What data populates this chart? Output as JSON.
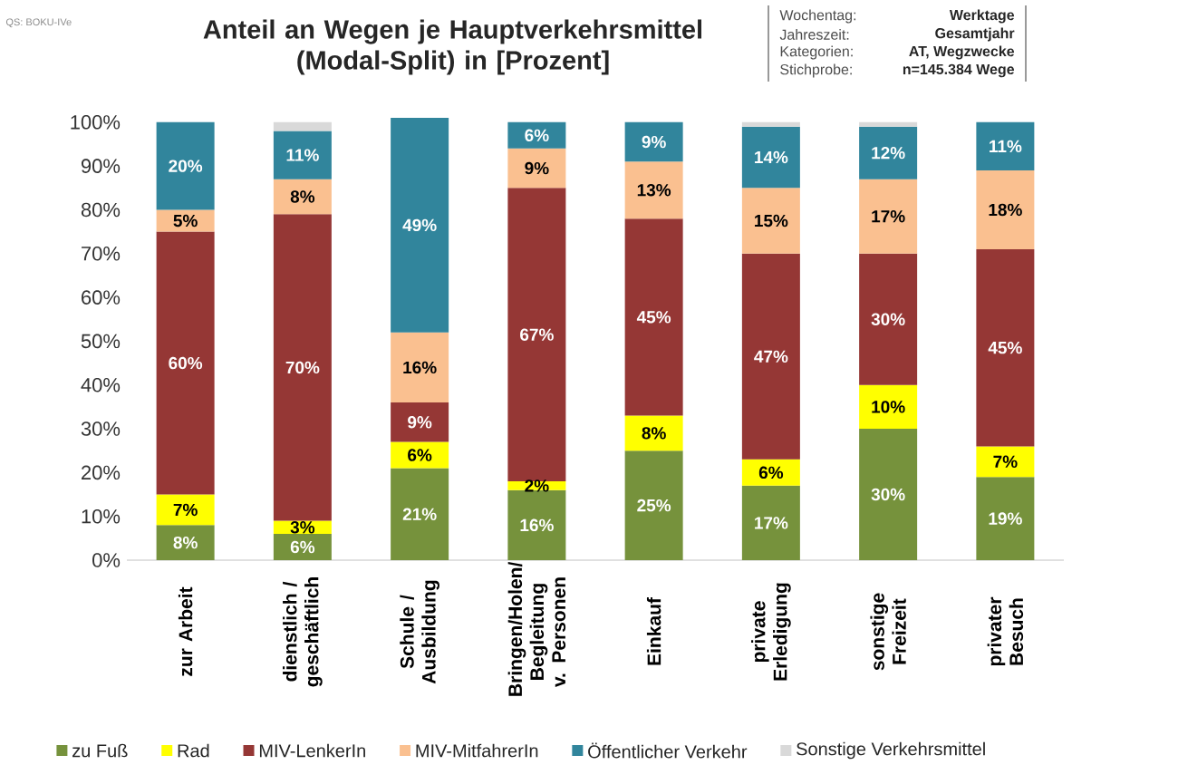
{
  "chart_data": {
    "type": "bar",
    "stacked": true,
    "title": "Anteil an Wegen je Hauptverkehrsmittel (Modal-Split) in [Prozent]",
    "annotations": [
      "QS: BOKU-IVe",
      "Wochentag:",
      "Werktage",
      "Jahreszeit:",
      "Gesamtjahr",
      "Kategorien:",
      "AT, Wegzwecke",
      "Stichprobe:",
      "n=145.384 Wege"
    ],
    "categories": [
      "zur Arbeit",
      "dienstlich / geschäftlich",
      "Schule / Ausbildung",
      "Bringen/Holen/ Begleitung v. Personen",
      "Einkauf",
      "private Erledigung",
      "sonstige Freizeit",
      "privater Besuch"
    ],
    "series": [
      {
        "name": "zu Fuß",
        "color": "#76923c",
        "values": [
          8,
          6,
          21,
          16,
          25,
          17,
          30,
          19
        ],
        "value_labels": [
          "8%",
          "6%",
          "21%",
          "16%",
          "25%",
          "17%",
          "30%",
          "19%"
        ]
      },
      {
        "name": "Rad",
        "color": "#ffff00",
        "values": [
          7,
          3,
          6,
          2,
          8,
          6,
          10,
          7
        ],
        "value_labels": [
          "7%",
          "3%",
          "6%",
          "2%",
          "8%",
          "6%",
          "10%",
          "7%"
        ]
      },
      {
        "name": "MIV-LenkerIn",
        "color": "#953735",
        "values": [
          60,
          70,
          9,
          67,
          45,
          47,
          30,
          45
        ],
        "value_labels": [
          "60%",
          "70%",
          "9%",
          "67%",
          "45%",
          "47%",
          "30%",
          "45%"
        ]
      },
      {
        "name": "MIV-MitfahrerIn",
        "color": "#fac090",
        "values": [
          5,
          8,
          16,
          9,
          13,
          15,
          17,
          18
        ],
        "value_labels": [
          "5%",
          "8%",
          "16%",
          "9%",
          "13%",
          "15%",
          "17%",
          "18%"
        ]
      },
      {
        "name": "Öffentlicher Verkehr",
        "color": "#31859c",
        "values": [
          20,
          11,
          49,
          6,
          9,
          14,
          12,
          11
        ],
        "value_labels": [
          "20%",
          "11%",
          "49%",
          "6%",
          "9%",
          "14%",
          "12%",
          "11%"
        ]
      },
      {
        "name": "Sonstige Verkehrsmittel",
        "color": "#d9d9d9",
        "values": [
          0,
          2,
          0,
          0,
          0,
          1,
          1,
          0
        ]
      }
    ],
    "ylim": [
      0,
      101
    ],
    "yticks": [
      {
        "value": 0,
        "label": "0%"
      },
      {
        "value": 10,
        "label": "10%"
      },
      {
        "value": 20,
        "label": "20%"
      },
      {
        "value": 30,
        "label": "30%"
      },
      {
        "value": 40,
        "label": "40%"
      },
      {
        "value": 50,
        "label": "50%"
      },
      {
        "value": 60,
        "label": "60%"
      },
      {
        "value": 70,
        "label": "70%"
      },
      {
        "value": 80,
        "label": "80%"
      },
      {
        "value": 90,
        "label": "90%"
      },
      {
        "value": 100,
        "label": "100%"
      }
    ],
    "legend": "bottom"
  }
}
